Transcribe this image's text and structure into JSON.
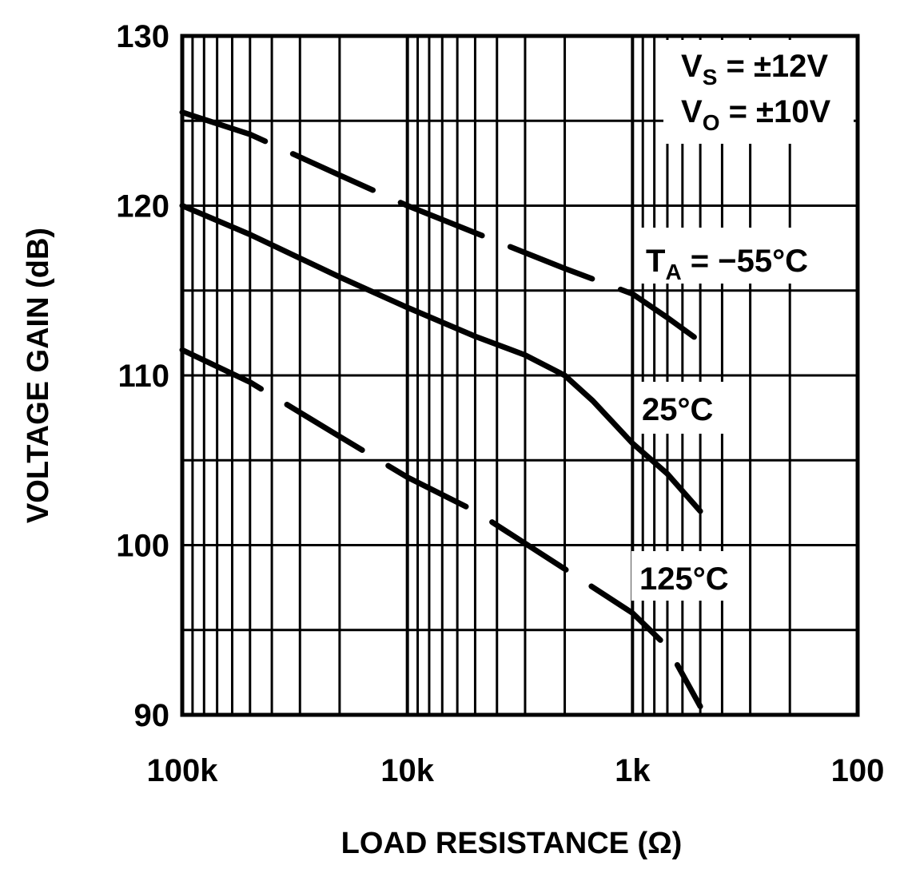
{
  "chart_data": {
    "type": "line",
    "title": "",
    "xlabel": "LOAD RESISTANCE (Ω)",
    "ylabel": "VOLTAGE GAIN (dB)",
    "xscale": "log",
    "x_reversed": true,
    "xlim": [
      100000,
      100
    ],
    "ylim": [
      90,
      130
    ],
    "grid": true,
    "x_tick_labels": [
      "100k",
      "10k",
      "1k",
      "100"
    ],
    "x_tick_values": [
      100000,
      10000,
      1000,
      100
    ],
    "y_tick_labels": [
      "130",
      "120",
      "110",
      "100",
      "90"
    ],
    "y_tick_values": [
      130,
      120,
      110,
      100,
      90
    ],
    "annotations": {
      "vs": {
        "main": "V",
        "sub": "S",
        "rest": " = ±12V"
      },
      "vo": {
        "main": "V",
        "sub": "O",
        "rest": " = ±10V"
      },
      "ta_55": {
        "main": "T",
        "sub": "A",
        "rest": " = −55°C"
      },
      "t_25": "25°C",
      "t_125": "125°C"
    },
    "series": [
      {
        "name": "TA = −55°C",
        "style": "dashed",
        "x": [
          100000,
          50000,
          20000,
          10000,
          5000,
          2000,
          1000,
          700,
          500
        ],
        "y": [
          125.5,
          124.2,
          121.8,
          120.0,
          118.4,
          116.3,
          114.8,
          113.4,
          112.0
        ]
      },
      {
        "name": "25°C",
        "style": "solid",
        "x": [
          100000,
          50000,
          20000,
          10000,
          5000,
          3000,
          2000,
          1500,
          1000,
          700,
          500
        ],
        "y": [
          120.0,
          118.3,
          115.8,
          114.0,
          112.3,
          111.2,
          110.0,
          108.5,
          106.0,
          104.2,
          102.0
        ]
      },
      {
        "name": "125°C",
        "style": "dashed",
        "x": [
          100000,
          50000,
          20000,
          10000,
          5000,
          2000,
          1000,
          700,
          500
        ],
        "y": [
          111.5,
          109.6,
          106.4,
          104.0,
          102.0,
          98.6,
          96.0,
          94.0,
          90.5
        ]
      }
    ]
  }
}
